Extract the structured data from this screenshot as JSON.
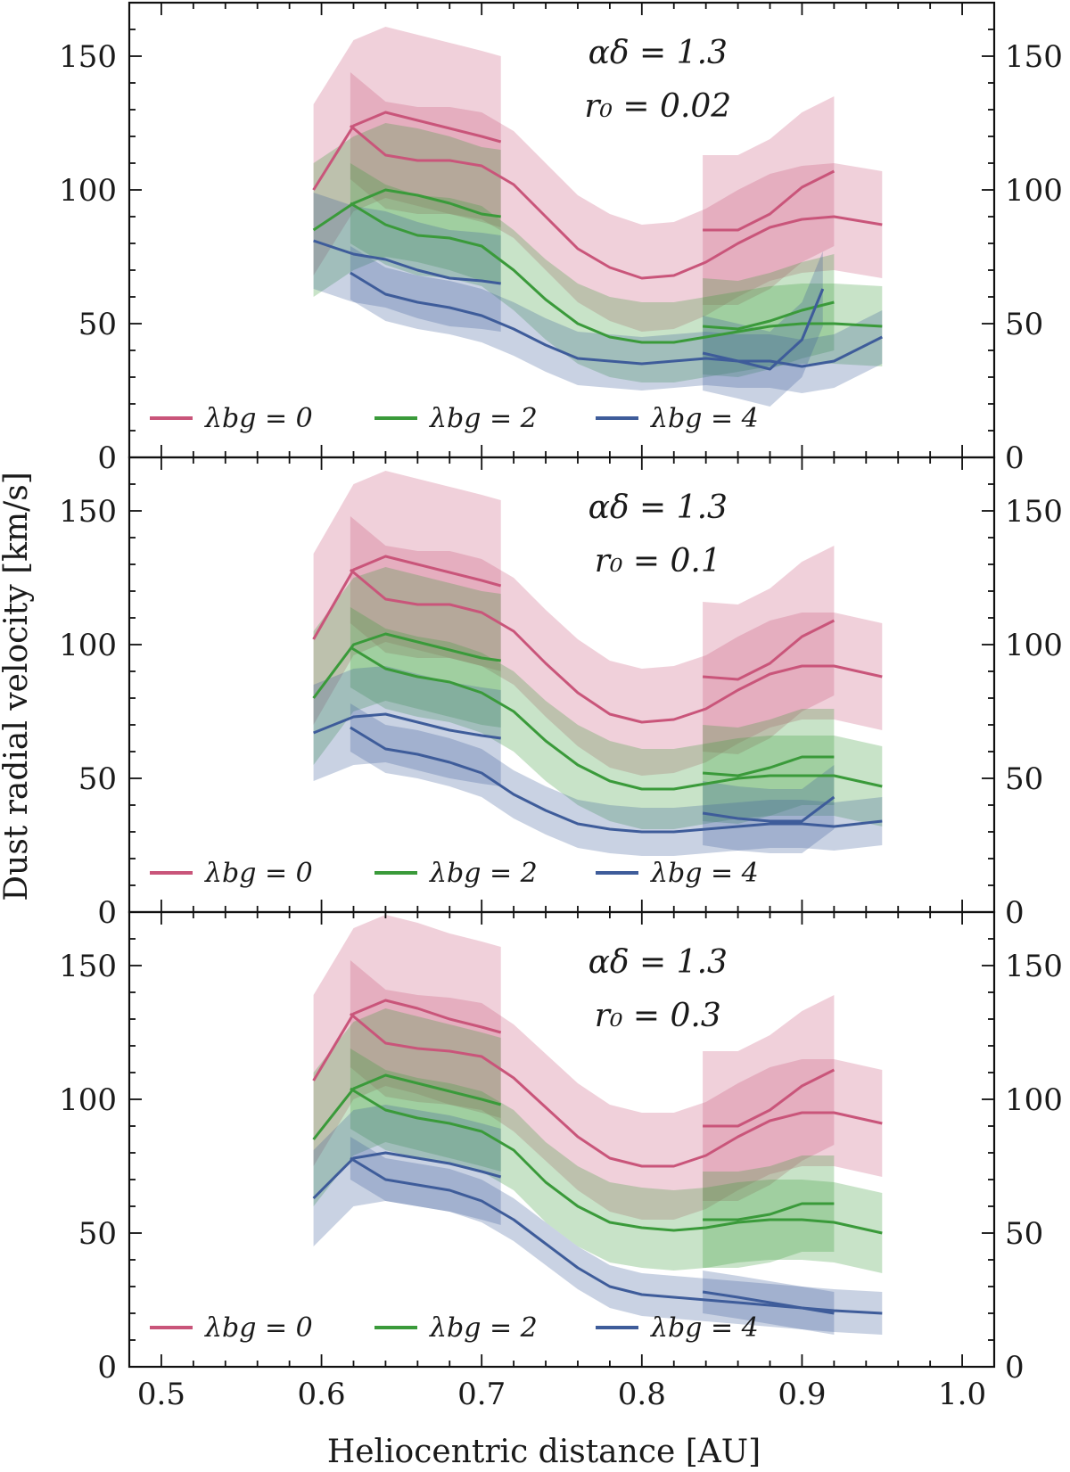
{
  "chart_data": {
    "type": "line",
    "xlabel": "Heliocentric distance [AU]",
    "ylabel": "Dust radial velocity [km/s]",
    "xlim": [
      0.48,
      1.02
    ],
    "ylim": [
      0,
      170
    ],
    "xticks": [
      0.5,
      0.6,
      0.7,
      0.8,
      0.9,
      1.0
    ],
    "xtick_labels": [
      "0.5",
      "0.6",
      "0.7",
      "0.8",
      "0.9",
      "1.0"
    ],
    "yticks": [
      0,
      50,
      100,
      150
    ],
    "ytick_labels": [
      "0",
      "50",
      "100",
      "150"
    ],
    "legend_location": "bottom",
    "colors": {
      "lambda0": "#c9557a",
      "lambda2": "#3a9a3a",
      "lambda4": "#3e5c9a"
    },
    "panels": [
      {
        "annotation_line1": "αδ = 1.3",
        "annotation_line2": "r₀ = 0.02",
        "legend": [
          "λbg = 0",
          "λbg = 2",
          "λbg = 4"
        ],
        "series": [
          {
            "name": "λbg = 0",
            "color": "#c9557a",
            "segments": [
              {
                "x": [
                  0.595,
                  0.62,
                  0.64,
                  0.66,
                  0.68,
                  0.7,
                  0.712
                ],
                "y": [
                  100,
                  124,
                  129,
                  126,
                  123,
                  120,
                  118
                ],
                "band": 32
              },
              {
                "x": [
                  0.618,
                  0.64,
                  0.66,
                  0.68,
                  0.7,
                  0.72,
                  0.74,
                  0.76,
                  0.78,
                  0.8,
                  0.82,
                  0.84,
                  0.86,
                  0.88,
                  0.9,
                  0.92,
                  0.95
                ],
                "y": [
                  124,
                  113,
                  111,
                  111,
                  109,
                  102,
                  90,
                  78,
                  71,
                  67,
                  68,
                  73,
                  80,
                  86,
                  89,
                  90,
                  87
                ],
                "band": 20
              },
              {
                "x": [
                  0.838,
                  0.86,
                  0.88,
                  0.9,
                  0.92
                ],
                "y": [
                  85,
                  85,
                  91,
                  101,
                  107
                ],
                "band": 28
              }
            ]
          },
          {
            "name": "λbg = 2",
            "color": "#3a9a3a",
            "segments": [
              {
                "x": [
                  0.595,
                  0.62,
                  0.64,
                  0.66,
                  0.68,
                  0.7,
                  0.712
                ],
                "y": [
                  85,
                  95,
                  100,
                  98,
                  95,
                  91,
                  90
                ],
                "band": 25
              },
              {
                "x": [
                  0.618,
                  0.64,
                  0.66,
                  0.68,
                  0.7,
                  0.72,
                  0.74,
                  0.76,
                  0.78,
                  0.8,
                  0.82,
                  0.84,
                  0.86,
                  0.88,
                  0.9,
                  0.92,
                  0.95
                ],
                "y": [
                  95,
                  87,
                  83,
                  82,
                  79,
                  70,
                  59,
                  50,
                  45,
                  43,
                  43,
                  45,
                  47,
                  49,
                  50,
                  50,
                  49
                ],
                "band": 15
              },
              {
                "x": [
                  0.838,
                  0.86,
                  0.88,
                  0.9,
                  0.92
                ],
                "y": [
                  49,
                  48,
                  51,
                  55,
                  58
                ],
                "band": 18
              }
            ]
          },
          {
            "name": "λbg = 4",
            "color": "#3e5c9a",
            "segments": [
              {
                "x": [
                  0.595,
                  0.62,
                  0.64,
                  0.66,
                  0.68,
                  0.7,
                  0.712
                ],
                "y": [
                  81,
                  76,
                  74,
                  70,
                  67,
                  66,
                  65
                ],
                "band": 18
              },
              {
                "x": [
                  0.618,
                  0.64,
                  0.66,
                  0.68,
                  0.7,
                  0.72,
                  0.74,
                  0.76,
                  0.78,
                  0.8,
                  0.82,
                  0.84,
                  0.86,
                  0.88,
                  0.9,
                  0.92,
                  0.95
                ],
                "y": [
                  69,
                  61,
                  58,
                  56,
                  53,
                  48,
                  42,
                  37,
                  36,
                  35,
                  36,
                  37,
                  36,
                  36,
                  34,
                  36,
                  45
                ],
                "band": 10
              },
              {
                "x": [
                  0.838,
                  0.86,
                  0.88,
                  0.9,
                  0.913
                ],
                "y": [
                  39,
                  36,
                  33,
                  44,
                  63
                ],
                "band": 14
              }
            ]
          }
        ]
      },
      {
        "annotation_line1": "αδ = 1.3",
        "annotation_line2": "r₀ = 0.1",
        "legend": [
          "λbg = 0",
          "λbg = 2",
          "λbg = 4"
        ],
        "series": [
          {
            "name": "λbg = 0",
            "color": "#c9557a",
            "segments": [
              {
                "x": [
                  0.595,
                  0.62,
                  0.64,
                  0.66,
                  0.68,
                  0.7,
                  0.712
                ],
                "y": [
                  102,
                  128,
                  133,
                  130,
                  127,
                  124,
                  122
                ],
                "band": 32
              },
              {
                "x": [
                  0.618,
                  0.64,
                  0.66,
                  0.68,
                  0.7,
                  0.72,
                  0.74,
                  0.76,
                  0.78,
                  0.8,
                  0.82,
                  0.84,
                  0.86,
                  0.88,
                  0.9,
                  0.92,
                  0.95
                ],
                "y": [
                  128,
                  117,
                  115,
                  115,
                  112,
                  105,
                  93,
                  82,
                  74,
                  71,
                  72,
                  76,
                  83,
                  89,
                  92,
                  92,
                  88
                ],
                "band": 20
              },
              {
                "x": [
                  0.838,
                  0.86,
                  0.88,
                  0.9,
                  0.92
                ],
                "y": [
                  88,
                  87,
                  93,
                  103,
                  109
                ],
                "band": 28
              }
            ]
          },
          {
            "name": "λbg = 2",
            "color": "#3a9a3a",
            "segments": [
              {
                "x": [
                  0.595,
                  0.62,
                  0.64,
                  0.66,
                  0.68,
                  0.7,
                  0.712
                ],
                "y": [
                  80,
                  100,
                  104,
                  101,
                  98,
                  95,
                  94
                ],
                "band": 25
              },
              {
                "x": [
                  0.618,
                  0.64,
                  0.66,
                  0.68,
                  0.7,
                  0.72,
                  0.74,
                  0.76,
                  0.78,
                  0.8,
                  0.82,
                  0.84,
                  0.86,
                  0.88,
                  0.9,
                  0.92,
                  0.95
                ],
                "y": [
                  99,
                  91,
                  88,
                  86,
                  82,
                  75,
                  64,
                  55,
                  49,
                  46,
                  46,
                  48,
                  50,
                  51,
                  51,
                  51,
                  47
                ],
                "band": 15
              },
              {
                "x": [
                  0.838,
                  0.86,
                  0.88,
                  0.9,
                  0.92
                ],
                "y": [
                  52,
                  51,
                  54,
                  58,
                  58
                ],
                "band": 18
              }
            ]
          },
          {
            "name": "λbg = 4",
            "color": "#3e5c9a",
            "segments": [
              {
                "x": [
                  0.595,
                  0.62,
                  0.64,
                  0.66,
                  0.68,
                  0.7,
                  0.712
                ],
                "y": [
                  67,
                  73,
                  74,
                  71,
                  68,
                  66,
                  65
                ],
                "band": 18
              },
              {
                "x": [
                  0.618,
                  0.64,
                  0.66,
                  0.68,
                  0.7,
                  0.72,
                  0.74,
                  0.76,
                  0.78,
                  0.8,
                  0.82,
                  0.84,
                  0.86,
                  0.88,
                  0.9,
                  0.92,
                  0.95
                ],
                "y": [
                  69,
                  61,
                  59,
                  56,
                  52,
                  44,
                  38,
                  33,
                  31,
                  30,
                  30,
                  31,
                  32,
                  33,
                  33,
                  32,
                  34
                ],
                "band": 9
              },
              {
                "x": [
                  0.838,
                  0.86,
                  0.88,
                  0.9,
                  0.92
                ],
                "y": [
                  37,
                  35,
                  34,
                  34,
                  43
                ],
                "band": 12
              }
            ]
          }
        ]
      },
      {
        "annotation_line1": "αδ = 1.3",
        "annotation_line2": "r₀ = 0.3",
        "legend": [
          "λbg = 0",
          "λbg = 2",
          "λbg = 4"
        ],
        "series": [
          {
            "name": "λbg = 0",
            "color": "#c9557a",
            "segments": [
              {
                "x": [
                  0.595,
                  0.62,
                  0.64,
                  0.66,
                  0.68,
                  0.7,
                  0.712
                ],
                "y": [
                  107,
                  132,
                  137,
                  134,
                  130,
                  127,
                  125
                ],
                "band": 32
              },
              {
                "x": [
                  0.618,
                  0.64,
                  0.66,
                  0.68,
                  0.7,
                  0.72,
                  0.74,
                  0.76,
                  0.78,
                  0.8,
                  0.82,
                  0.84,
                  0.86,
                  0.88,
                  0.9,
                  0.92,
                  0.95
                ],
                "y": [
                  132,
                  121,
                  119,
                  118,
                  116,
                  108,
                  97,
                  86,
                  78,
                  75,
                  75,
                  79,
                  86,
                  92,
                  95,
                  95,
                  91
                ],
                "band": 20
              },
              {
                "x": [
                  0.838,
                  0.86,
                  0.88,
                  0.9,
                  0.92
                ],
                "y": [
                  90,
                  90,
                  96,
                  105,
                  111
                ],
                "band": 28
              }
            ]
          },
          {
            "name": "λbg = 2",
            "color": "#3a9a3a",
            "segments": [
              {
                "x": [
                  0.595,
                  0.62,
                  0.64,
                  0.66,
                  0.68,
                  0.7,
                  0.712
                ],
                "y": [
                  85,
                  104,
                  109,
                  106,
                  103,
                  100,
                  98
                ],
                "band": 25
              },
              {
                "x": [
                  0.618,
                  0.64,
                  0.66,
                  0.68,
                  0.7,
                  0.72,
                  0.74,
                  0.76,
                  0.78,
                  0.8,
                  0.82,
                  0.84,
                  0.86,
                  0.88,
                  0.9,
                  0.92,
                  0.95
                ],
                "y": [
                  104,
                  96,
                  93,
                  91,
                  88,
                  81,
                  69,
                  60,
                  54,
                  52,
                  51,
                  52,
                  54,
                  55,
                  55,
                  54,
                  50
                ],
                "band": 15
              },
              {
                "x": [
                  0.838,
                  0.86,
                  0.88,
                  0.9,
                  0.92
                ],
                "y": [
                  55,
                  55,
                  57,
                  61,
                  61
                ],
                "band": 18
              }
            ]
          },
          {
            "name": "λbg = 4",
            "color": "#3e5c9a",
            "segments": [
              {
                "x": [
                  0.595,
                  0.62,
                  0.64,
                  0.66,
                  0.68,
                  0.7,
                  0.712
                ],
                "y": [
                  63,
                  78,
                  80,
                  78,
                  76,
                  73,
                  71
                ],
                "band": 18
              },
              {
                "x": [
                  0.618,
                  0.64,
                  0.66,
                  0.68,
                  0.7,
                  0.72,
                  0.74,
                  0.76,
                  0.78,
                  0.8,
                  0.82,
                  0.84,
                  0.86,
                  0.88,
                  0.9,
                  0.92,
                  0.95
                ],
                "y": [
                  78,
                  70,
                  68,
                  66,
                  62,
                  55,
                  46,
                  37,
                  30,
                  27,
                  26,
                  25,
                  24,
                  23,
                  22,
                  21,
                  20
                ],
                "band": 8
              },
              {
                "x": [
                  0.838,
                  0.86,
                  0.88,
                  0.9,
                  0.92
                ],
                "y": [
                  28,
                  26,
                  24,
                  22,
                  20
                ],
                "band": 8
              }
            ]
          }
        ]
      }
    ]
  }
}
